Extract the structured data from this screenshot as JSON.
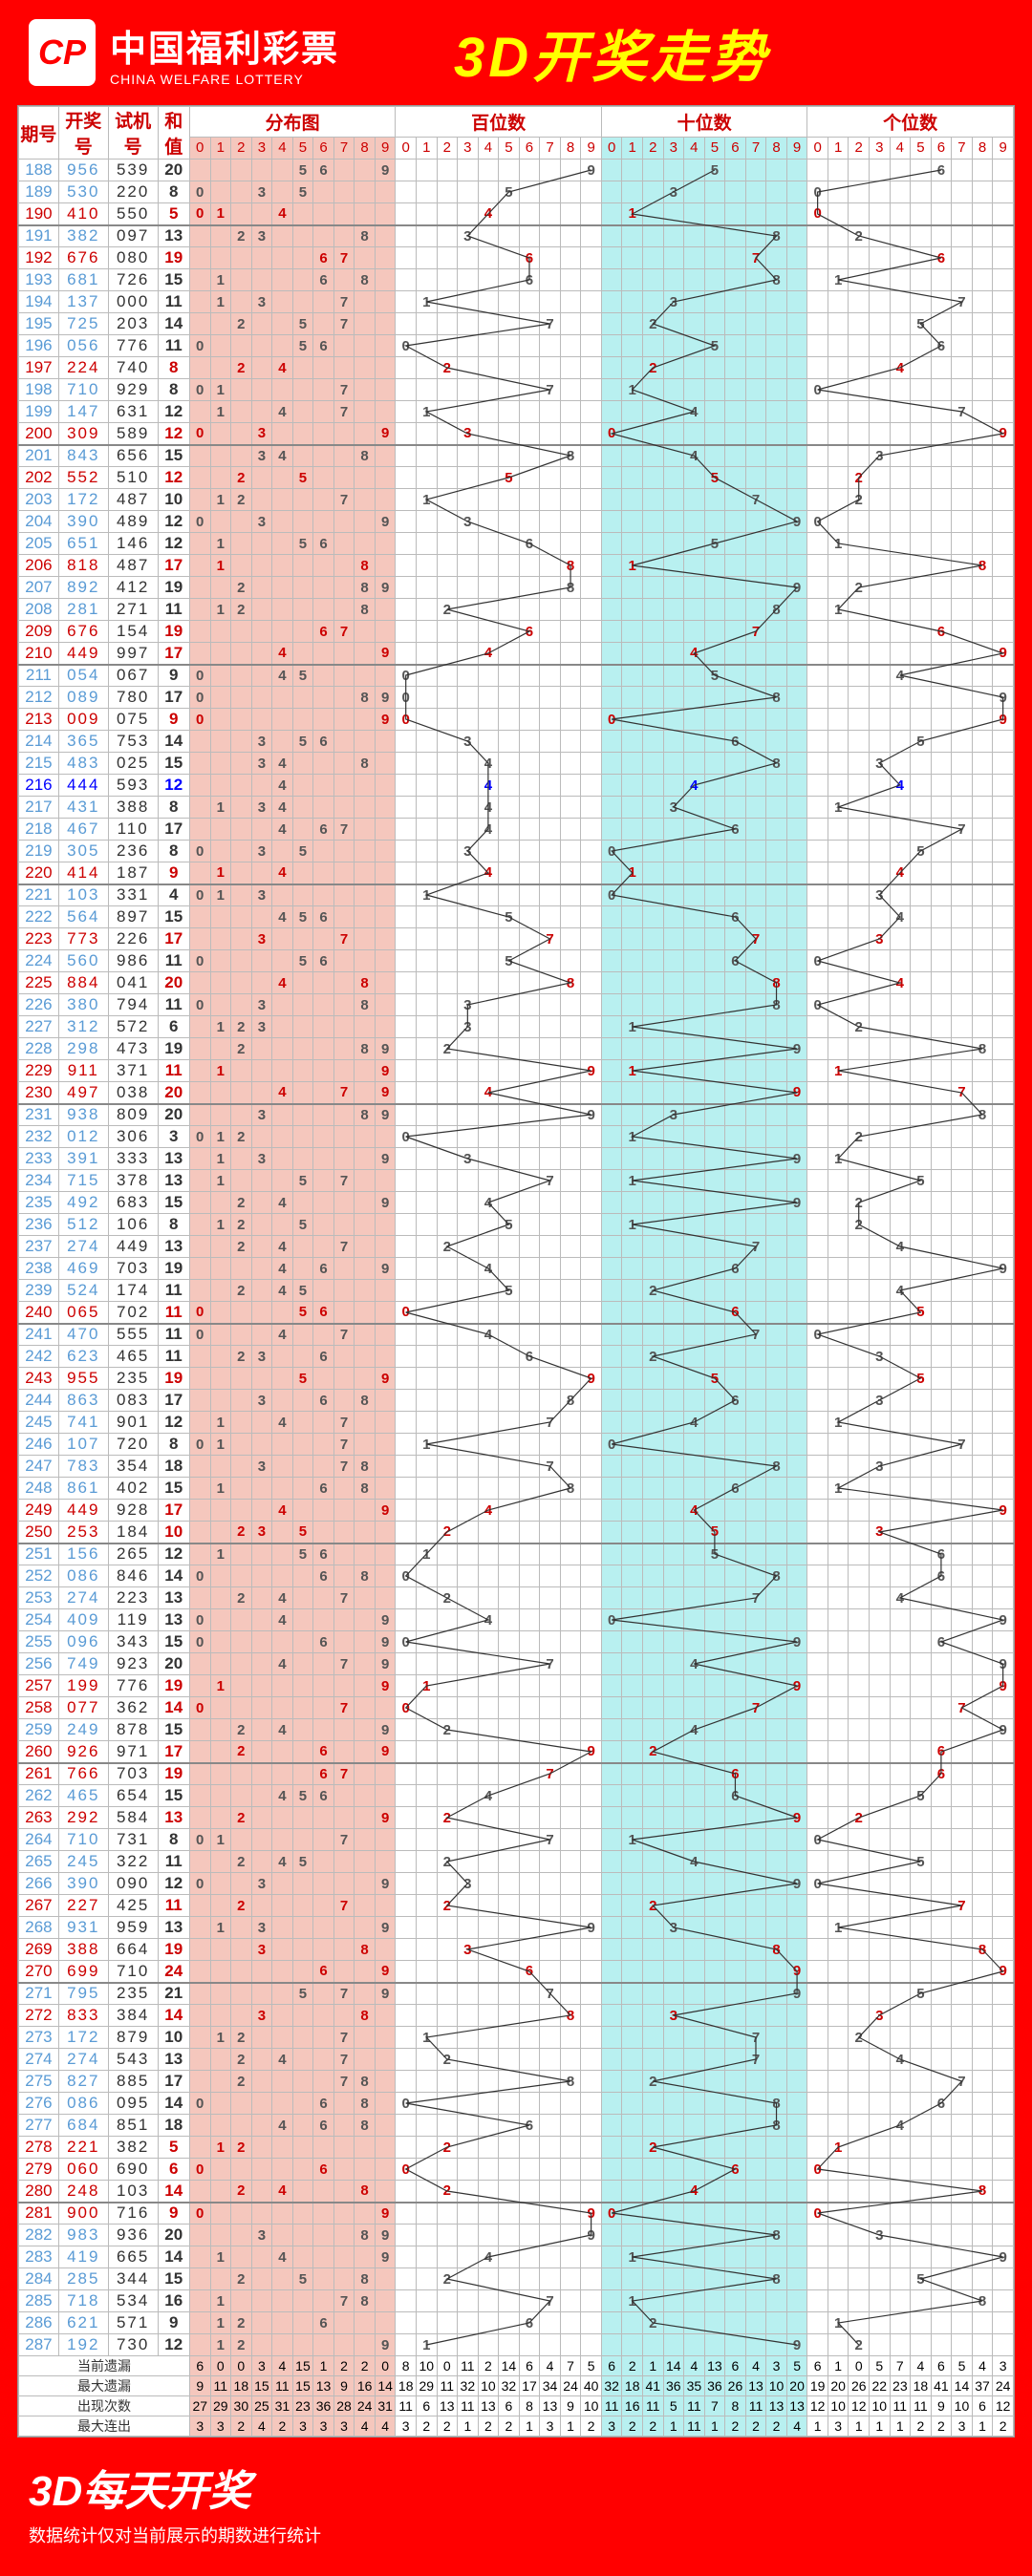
{
  "header": {
    "brand": "中国福利彩票",
    "brand_en": "CHINA WELFARE LOTTERY",
    "title": "3D开奖走势",
    "logo": "CP"
  },
  "footer": {
    "title": "3D每天开奖",
    "sub": "数据统计仅对当前展示的期数进行统计"
  },
  "columns": {
    "qh": "期号",
    "kj": "开奖号",
    "sj": "试机号",
    "hz": "和值",
    "dist": "分布图",
    "bai": "百位数",
    "shi": "十位数",
    "ge": "个位数"
  },
  "digits": [
    "0",
    "1",
    "2",
    "3",
    "4",
    "5",
    "6",
    "7",
    "8",
    "9"
  ],
  "colors": {
    "red": "#cc0000",
    "blue": "#0000ff",
    "dist_bg": "#f5c7bd",
    "shi_bg": "#b8f0f0",
    "header_bg": "#ff0000",
    "yellow": "#ffff00",
    "line": "#333333"
  },
  "rows": [
    {
      "q": "188",
      "kj": "956",
      "sj": "539",
      "hz": "20",
      "sp": 0
    },
    {
      "q": "189",
      "kj": "530",
      "sj": "220",
      "hz": "8",
      "sp": 0
    },
    {
      "q": "190",
      "kj": "410",
      "sj": "550",
      "hz": "5",
      "red": 1,
      "sp": 1
    },
    {
      "q": "191",
      "kj": "382",
      "sj": "097",
      "hz": "13",
      "sp": 0
    },
    {
      "q": "192",
      "kj": "676",
      "sj": "080",
      "hz": "19",
      "red": 1,
      "sp": 0
    },
    {
      "q": "193",
      "kj": "681",
      "sj": "726",
      "hz": "15",
      "sp": 0
    },
    {
      "q": "194",
      "kj": "137",
      "sj": "000",
      "hz": "11",
      "sp": 0
    },
    {
      "q": "195",
      "kj": "725",
      "sj": "203",
      "hz": "14",
      "sp": 0
    },
    {
      "q": "196",
      "kj": "056",
      "sj": "776",
      "hz": "11",
      "sp": 0
    },
    {
      "q": "197",
      "kj": "224",
      "sj": "740",
      "hz": "8",
      "red": 1,
      "sp": 0
    },
    {
      "q": "198",
      "kj": "710",
      "sj": "929",
      "hz": "8",
      "sp": 0
    },
    {
      "q": "199",
      "kj": "147",
      "sj": "631",
      "hz": "12",
      "sp": 0
    },
    {
      "q": "200",
      "kj": "309",
      "sj": "589",
      "hz": "12",
      "red": 1,
      "sp": 1
    },
    {
      "q": "201",
      "kj": "843",
      "sj": "656",
      "hz": "15",
      "sp": 0
    },
    {
      "q": "202",
      "kj": "552",
      "sj": "510",
      "hz": "12",
      "red": 1,
      "sp": 0
    },
    {
      "q": "203",
      "kj": "172",
      "sj": "487",
      "hz": "10",
      "sp": 0
    },
    {
      "q": "204",
      "kj": "390",
      "sj": "489",
      "hz": "12",
      "sp": 0
    },
    {
      "q": "205",
      "kj": "651",
      "sj": "146",
      "hz": "12",
      "sp": 0
    },
    {
      "q": "206",
      "kj": "818",
      "sj": "487",
      "hz": "17",
      "red": 1,
      "sp": 0
    },
    {
      "q": "207",
      "kj": "892",
      "sj": "412",
      "hz": "19",
      "sp": 0
    },
    {
      "q": "208",
      "kj": "281",
      "sj": "271",
      "hz": "11",
      "sp": 0
    },
    {
      "q": "209",
      "kj": "676",
      "sj": "154",
      "hz": "19",
      "red": 1,
      "sp": 0
    },
    {
      "q": "210",
      "kj": "449",
      "sj": "997",
      "hz": "17",
      "red": 1,
      "sp": 1
    },
    {
      "q": "211",
      "kj": "054",
      "sj": "067",
      "hz": "9",
      "sp": 0
    },
    {
      "q": "212",
      "kj": "089",
      "sj": "780",
      "hz": "17",
      "sp": 0
    },
    {
      "q": "213",
      "kj": "009",
      "sj": "075",
      "hz": "9",
      "red": 1,
      "sp": 0
    },
    {
      "q": "214",
      "kj": "365",
      "sj": "753",
      "hz": "14",
      "sp": 0
    },
    {
      "q": "215",
      "kj": "483",
      "sj": "025",
      "hz": "15",
      "sp": 0
    },
    {
      "q": "216",
      "kj": "444",
      "sj": "593",
      "hz": "12",
      "blue": 1,
      "sp": 0
    },
    {
      "q": "217",
      "kj": "431",
      "sj": "388",
      "hz": "8",
      "sp": 0
    },
    {
      "q": "218",
      "kj": "467",
      "sj": "110",
      "hz": "17",
      "sp": 0
    },
    {
      "q": "219",
      "kj": "305",
      "sj": "236",
      "hz": "8",
      "sp": 0
    },
    {
      "q": "220",
      "kj": "414",
      "sj": "187",
      "hz": "9",
      "red": 1,
      "sp": 1
    },
    {
      "q": "221",
      "kj": "103",
      "sj": "331",
      "hz": "4",
      "sp": 0
    },
    {
      "q": "222",
      "kj": "564",
      "sj": "897",
      "hz": "15",
      "sp": 0
    },
    {
      "q": "223",
      "kj": "773",
      "sj": "226",
      "hz": "17",
      "red": 1,
      "sp": 0
    },
    {
      "q": "224",
      "kj": "560",
      "sj": "986",
      "hz": "11",
      "sp": 0
    },
    {
      "q": "225",
      "kj": "884",
      "sj": "041",
      "hz": "20",
      "red": 1,
      "sp": 0
    },
    {
      "q": "226",
      "kj": "380",
      "sj": "794",
      "hz": "11",
      "sp": 0
    },
    {
      "q": "227",
      "kj": "312",
      "sj": "572",
      "hz": "6",
      "sp": 0
    },
    {
      "q": "228",
      "kj": "298",
      "sj": "473",
      "hz": "19",
      "sp": 0
    },
    {
      "q": "229",
      "kj": "911",
      "sj": "371",
      "hz": "11",
      "red": 1,
      "sp": 0
    },
    {
      "q": "230",
      "kj": "497",
      "sj": "038",
      "hz": "20",
      "red": 1,
      "sp": 1
    },
    {
      "q": "231",
      "kj": "938",
      "sj": "809",
      "hz": "20",
      "sp": 0
    },
    {
      "q": "232",
      "kj": "012",
      "sj": "306",
      "hz": "3",
      "sp": 0
    },
    {
      "q": "233",
      "kj": "391",
      "sj": "333",
      "hz": "13",
      "sp": 0
    },
    {
      "q": "234",
      "kj": "715",
      "sj": "378",
      "hz": "13",
      "sp": 0
    },
    {
      "q": "235",
      "kj": "492",
      "sj": "683",
      "hz": "15",
      "sp": 0
    },
    {
      "q": "236",
      "kj": "512",
      "sj": "106",
      "hz": "8",
      "sp": 0
    },
    {
      "q": "237",
      "kj": "274",
      "sj": "449",
      "hz": "13",
      "sp": 0
    },
    {
      "q": "238",
      "kj": "469",
      "sj": "703",
      "hz": "19",
      "sp": 0
    },
    {
      "q": "239",
      "kj": "524",
      "sj": "174",
      "hz": "11",
      "sp": 0
    },
    {
      "q": "240",
      "kj": "065",
      "sj": "702",
      "hz": "11",
      "red": 1,
      "sp": 1
    },
    {
      "q": "241",
      "kj": "470",
      "sj": "555",
      "hz": "11",
      "sp": 0
    },
    {
      "q": "242",
      "kj": "623",
      "sj": "465",
      "hz": "11",
      "sp": 0
    },
    {
      "q": "243",
      "kj": "955",
      "sj": "235",
      "hz": "19",
      "red": 1,
      "sp": 0
    },
    {
      "q": "244",
      "kj": "863",
      "sj": "083",
      "hz": "17",
      "sp": 0
    },
    {
      "q": "245",
      "kj": "741",
      "sj": "901",
      "hz": "12",
      "sp": 0
    },
    {
      "q": "246",
      "kj": "107",
      "sj": "720",
      "hz": "8",
      "sp": 0
    },
    {
      "q": "247",
      "kj": "783",
      "sj": "354",
      "hz": "18",
      "sp": 0
    },
    {
      "q": "248",
      "kj": "861",
      "sj": "402",
      "hz": "15",
      "sp": 0
    },
    {
      "q": "249",
      "kj": "449",
      "sj": "928",
      "hz": "17",
      "red": 1,
      "sp": 0
    },
    {
      "q": "250",
      "kj": "253",
      "sj": "184",
      "hz": "10",
      "red": 1,
      "sp": 1
    },
    {
      "q": "251",
      "kj": "156",
      "sj": "265",
      "hz": "12",
      "sp": 0
    },
    {
      "q": "252",
      "kj": "086",
      "sj": "846",
      "hz": "14",
      "sp": 0
    },
    {
      "q": "253",
      "kj": "274",
      "sj": "223",
      "hz": "13",
      "sp": 0
    },
    {
      "q": "254",
      "kj": "409",
      "sj": "119",
      "hz": "13",
      "sp": 0
    },
    {
      "q": "255",
      "kj": "096",
      "sj": "343",
      "hz": "15",
      "sp": 0
    },
    {
      "q": "256",
      "kj": "749",
      "sj": "923",
      "hz": "20",
      "sp": 0
    },
    {
      "q": "257",
      "kj": "199",
      "sj": "776",
      "hz": "19",
      "red": 1,
      "sp": 0
    },
    {
      "q": "258",
      "kj": "077",
      "sj": "362",
      "hz": "14",
      "red": 1,
      "sp": 0
    },
    {
      "q": "259",
      "kj": "249",
      "sj": "878",
      "hz": "15",
      "sp": 0
    },
    {
      "q": "260",
      "kj": "926",
      "sj": "971",
      "hz": "17",
      "red": 1,
      "sp": 1
    },
    {
      "q": "261",
      "kj": "766",
      "sj": "703",
      "hz": "19",
      "red": 1,
      "sp": 0
    },
    {
      "q": "262",
      "kj": "465",
      "sj": "654",
      "hz": "15",
      "sp": 0
    },
    {
      "q": "263",
      "kj": "292",
      "sj": "584",
      "hz": "13",
      "red": 1,
      "sp": 0
    },
    {
      "q": "264",
      "kj": "710",
      "sj": "731",
      "hz": "8",
      "sp": 0
    },
    {
      "q": "265",
      "kj": "245",
      "sj": "322",
      "hz": "11",
      "sp": 0
    },
    {
      "q": "266",
      "kj": "390",
      "sj": "090",
      "hz": "12",
      "sp": 0
    },
    {
      "q": "267",
      "kj": "227",
      "sj": "425",
      "hz": "11",
      "red": 1,
      "sp": 0
    },
    {
      "q": "268",
      "kj": "931",
      "sj": "959",
      "hz": "13",
      "sp": 0
    },
    {
      "q": "269",
      "kj": "388",
      "sj": "664",
      "hz": "19",
      "red": 1,
      "sp": 0
    },
    {
      "q": "270",
      "kj": "699",
      "sj": "710",
      "hz": "24",
      "red": 1,
      "sp": 1
    },
    {
      "q": "271",
      "kj": "795",
      "sj": "235",
      "hz": "21",
      "sp": 0
    },
    {
      "q": "272",
      "kj": "833",
      "sj": "384",
      "hz": "14",
      "red": 1,
      "sp": 0
    },
    {
      "q": "273",
      "kj": "172",
      "sj": "879",
      "hz": "10",
      "sp": 0
    },
    {
      "q": "274",
      "kj": "274",
      "sj": "543",
      "hz": "13",
      "sp": 0
    },
    {
      "q": "275",
      "kj": "827",
      "sj": "885",
      "hz": "17",
      "sp": 0
    },
    {
      "q": "276",
      "kj": "086",
      "sj": "095",
      "hz": "14",
      "sp": 0
    },
    {
      "q": "277",
      "kj": "684",
      "sj": "851",
      "hz": "18",
      "sp": 0
    },
    {
      "q": "278",
      "kj": "221",
      "sj": "382",
      "hz": "5",
      "red": 1,
      "sp": 0
    },
    {
      "q": "279",
      "kj": "060",
      "sj": "690",
      "hz": "6",
      "red": 1,
      "sp": 0
    },
    {
      "q": "280",
      "kj": "248",
      "sj": "103",
      "hz": "14",
      "red": 1,
      "sp": 1
    },
    {
      "q": "281",
      "kj": "900",
      "sj": "716",
      "hz": "9",
      "red": 1,
      "sp": 0
    },
    {
      "q": "282",
      "kj": "983",
      "sj": "936",
      "hz": "20",
      "sp": 0
    },
    {
      "q": "283",
      "kj": "419",
      "sj": "665",
      "hz": "14",
      "sp": 0
    },
    {
      "q": "284",
      "kj": "285",
      "sj": "344",
      "hz": "15",
      "sp": 0
    },
    {
      "q": "285",
      "kj": "718",
      "sj": "534",
      "hz": "16",
      "sp": 0
    },
    {
      "q": "286",
      "kj": "621",
      "sj": "571",
      "hz": "9",
      "sp": 0
    },
    {
      "q": "287",
      "kj": "192",
      "sj": "730",
      "hz": "12",
      "sp": 0
    }
  ],
  "stats": {
    "labels": [
      "当前遗漏",
      "最大遗漏",
      "出现次数",
      "最大连出"
    ],
    "dist": [
      [
        "6",
        "0",
        "0",
        "3",
        "4",
        "15",
        "1",
        "2",
        "2",
        "0"
      ],
      [
        "9",
        "11",
        "18",
        "15",
        "11",
        "15",
        "13",
        "9",
        "16",
        "14"
      ],
      [
        "27",
        "29",
        "30",
        "25",
        "31",
        "23",
        "36",
        "28",
        "24",
        "31"
      ],
      [
        "3",
        "3",
        "2",
        "4",
        "2",
        "3",
        "3",
        "3",
        "4",
        "4"
      ]
    ],
    "bai": [
      [
        "8",
        "10",
        "0",
        "11",
        "2",
        "14",
        "6",
        "4",
        "7",
        "5"
      ],
      [
        "18",
        "29",
        "11",
        "32",
        "10",
        "32",
        "17",
        "34",
        "24",
        "40"
      ],
      [
        "11",
        "6",
        "13",
        "11",
        "13",
        "6",
        "8",
        "13",
        "9",
        "10"
      ],
      [
        "3",
        "2",
        "2",
        "1",
        "2",
        "2",
        "1",
        "3",
        "1",
        "2"
      ]
    ],
    "shi": [
      [
        "6",
        "2",
        "1",
        "14",
        "4",
        "13",
        "6",
        "4",
        "3",
        "5"
      ],
      [
        "32",
        "18",
        "41",
        "36",
        "35",
        "36",
        "26",
        "13",
        "10",
        "20"
      ],
      [
        "11",
        "16",
        "11",
        "5",
        "11",
        "7",
        "8",
        "11",
        "13",
        "13"
      ],
      [
        "3",
        "2",
        "2",
        "1",
        "11",
        "1",
        "2",
        "2",
        "2",
        "4"
      ]
    ],
    "ge": [
      [
        "6",
        "1",
        "0",
        "5",
        "7",
        "4",
        "6",
        "5",
        "4",
        "3"
      ],
      [
        "19",
        "20",
        "26",
        "22",
        "23",
        "18",
        "41",
        "14",
        "37",
        "24"
      ],
      [
        "12",
        "10",
        "12",
        "10",
        "11",
        "11",
        "9",
        "10",
        "6",
        "12"
      ],
      [
        "1",
        "3",
        "1",
        "1",
        "1",
        "2",
        "2",
        "3",
        "1",
        "2"
      ]
    ]
  }
}
